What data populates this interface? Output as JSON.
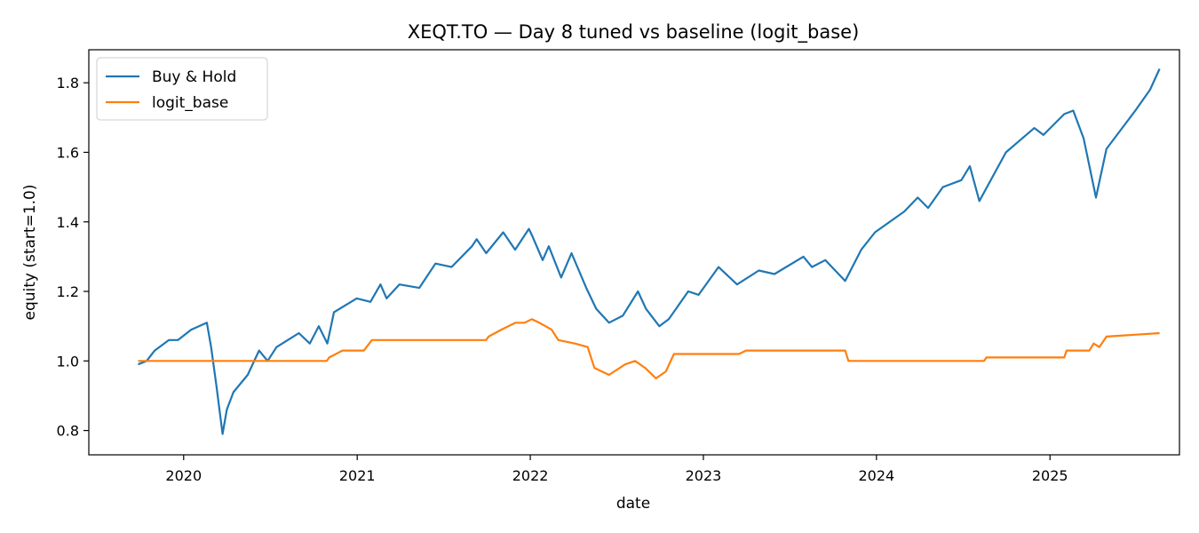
{
  "chart_data": {
    "type": "line",
    "title": "XEQT.TO — Day 8 tuned vs baseline (logit_base)",
    "xlabel": "date",
    "ylabel": "equity (start=1.0)",
    "xlim": [
      "2019-06-15",
      "2025-10-01"
    ],
    "ylim": [
      0.73,
      1.895
    ],
    "x_ticks": [
      {
        "date": "2020-01-01",
        "label": "2020"
      },
      {
        "date": "2021-01-01",
        "label": "2021"
      },
      {
        "date": "2022-01-01",
        "label": "2022"
      },
      {
        "date": "2023-01-01",
        "label": "2023"
      },
      {
        "date": "2024-01-01",
        "label": "2024"
      },
      {
        "date": "2025-01-01",
        "label": "2025"
      }
    ],
    "y_ticks": [
      {
        "value": 0.8,
        "label": "0.8"
      },
      {
        "value": 1.0,
        "label": "1.0"
      },
      {
        "value": 1.2,
        "label": "1.2"
      },
      {
        "value": 1.4,
        "label": "1.4"
      },
      {
        "value": 1.6,
        "label": "1.6"
      },
      {
        "value": 1.8,
        "label": "1.8"
      }
    ],
    "grid": false,
    "legend": "upper-left",
    "series": [
      {
        "name": "Buy & Hold",
        "color": "#1f77b4",
        "points": [
          [
            "2019-09-27",
            0.99
          ],
          [
            "2019-10-15",
            1.0
          ],
          [
            "2019-11-01",
            1.03
          ],
          [
            "2019-12-01",
            1.06
          ],
          [
            "2019-12-20",
            1.06
          ],
          [
            "2020-01-17",
            1.09
          ],
          [
            "2020-02-19",
            1.11
          ],
          [
            "2020-02-28",
            1.04
          ],
          [
            "2020-03-10",
            0.93
          ],
          [
            "2020-03-23",
            0.79
          ],
          [
            "2020-04-01",
            0.86
          ],
          [
            "2020-04-15",
            0.91
          ],
          [
            "2020-05-15",
            0.96
          ],
          [
            "2020-06-08",
            1.03
          ],
          [
            "2020-06-26",
            1.0
          ],
          [
            "2020-07-15",
            1.04
          ],
          [
            "2020-08-31",
            1.08
          ],
          [
            "2020-09-23",
            1.05
          ],
          [
            "2020-10-12",
            1.1
          ],
          [
            "2020-10-30",
            1.05
          ],
          [
            "2020-11-13",
            1.14
          ],
          [
            "2020-12-31",
            1.18
          ],
          [
            "2021-01-29",
            1.17
          ],
          [
            "2021-02-19",
            1.22
          ],
          [
            "2021-03-04",
            1.18
          ],
          [
            "2021-03-31",
            1.22
          ],
          [
            "2021-05-12",
            1.21
          ],
          [
            "2021-06-15",
            1.28
          ],
          [
            "2021-07-19",
            1.27
          ],
          [
            "2021-08-31",
            1.33
          ],
          [
            "2021-09-10",
            1.35
          ],
          [
            "2021-09-30",
            1.31
          ],
          [
            "2021-11-05",
            1.37
          ],
          [
            "2021-11-30",
            1.32
          ],
          [
            "2021-12-29",
            1.38
          ],
          [
            "2022-01-05",
            1.36
          ],
          [
            "2022-01-27",
            1.29
          ],
          [
            "2022-02-09",
            1.33
          ],
          [
            "2022-03-07",
            1.24
          ],
          [
            "2022-03-29",
            1.31
          ],
          [
            "2022-04-29",
            1.21
          ],
          [
            "2022-05-20",
            1.15
          ],
          [
            "2022-06-16",
            1.11
          ],
          [
            "2022-07-15",
            1.13
          ],
          [
            "2022-08-16",
            1.2
          ],
          [
            "2022-09-02",
            1.15
          ],
          [
            "2022-09-30",
            1.1
          ],
          [
            "2022-10-20",
            1.12
          ],
          [
            "2022-11-30",
            1.2
          ],
          [
            "2022-12-22",
            1.19
          ],
          [
            "2023-02-02",
            1.27
          ],
          [
            "2023-03-13",
            1.22
          ],
          [
            "2023-04-28",
            1.26
          ],
          [
            "2023-05-31",
            1.25
          ],
          [
            "2023-07-31",
            1.3
          ],
          [
            "2023-08-18",
            1.27
          ],
          [
            "2023-09-15",
            1.29
          ],
          [
            "2023-10-27",
            1.23
          ],
          [
            "2023-11-30",
            1.32
          ],
          [
            "2023-12-29",
            1.37
          ],
          [
            "2024-02-29",
            1.43
          ],
          [
            "2024-03-28",
            1.47
          ],
          [
            "2024-04-19",
            1.44
          ],
          [
            "2024-05-20",
            1.5
          ],
          [
            "2024-06-28",
            1.52
          ],
          [
            "2024-07-16",
            1.56
          ],
          [
            "2024-08-05",
            1.46
          ],
          [
            "2024-09-30",
            1.6
          ],
          [
            "2024-11-29",
            1.67
          ],
          [
            "2024-12-18",
            1.65
          ],
          [
            "2025-01-31",
            1.71
          ],
          [
            "2025-02-19",
            1.72
          ],
          [
            "2025-03-13",
            1.64
          ],
          [
            "2025-04-08",
            1.47
          ],
          [
            "2025-04-30",
            1.61
          ],
          [
            "2025-06-30",
            1.72
          ],
          [
            "2025-07-31",
            1.78
          ],
          [
            "2025-08-20",
            1.84
          ]
        ]
      },
      {
        "name": "logit_base",
        "color": "#ff7f0e",
        "points": [
          [
            "2019-09-27",
            1.0
          ],
          [
            "2020-10-29",
            1.0
          ],
          [
            "2020-11-03",
            1.01
          ],
          [
            "2020-12-01",
            1.03
          ],
          [
            "2021-01-15",
            1.03
          ],
          [
            "2021-02-01",
            1.06
          ],
          [
            "2021-09-30",
            1.06
          ],
          [
            "2021-10-05",
            1.07
          ],
          [
            "2021-11-01",
            1.09
          ],
          [
            "2021-12-01",
            1.11
          ],
          [
            "2021-12-20",
            1.11
          ],
          [
            "2022-01-04",
            1.12
          ],
          [
            "2022-01-20",
            1.11
          ],
          [
            "2022-02-15",
            1.09
          ],
          [
            "2022-03-01",
            1.06
          ],
          [
            "2022-04-05",
            1.05
          ],
          [
            "2022-05-02",
            1.04
          ],
          [
            "2022-05-16",
            0.98
          ],
          [
            "2022-06-16",
            0.96
          ],
          [
            "2022-07-20",
            0.99
          ],
          [
            "2022-08-10",
            1.0
          ],
          [
            "2022-08-31",
            0.98
          ],
          [
            "2022-09-23",
            0.95
          ],
          [
            "2022-10-14",
            0.97
          ],
          [
            "2022-10-31",
            1.02
          ],
          [
            "2023-03-17",
            1.02
          ],
          [
            "2023-04-01",
            1.03
          ],
          [
            "2023-10-27",
            1.03
          ],
          [
            "2023-11-03",
            1.0
          ],
          [
            "2024-08-15",
            1.0
          ],
          [
            "2024-08-20",
            1.01
          ],
          [
            "2025-01-31",
            1.01
          ],
          [
            "2025-02-05",
            1.03
          ],
          [
            "2025-03-25",
            1.03
          ],
          [
            "2025-04-03",
            1.05
          ],
          [
            "2025-04-15",
            1.04
          ],
          [
            "2025-04-30",
            1.07
          ],
          [
            "2025-08-20",
            1.08
          ]
        ]
      }
    ]
  }
}
